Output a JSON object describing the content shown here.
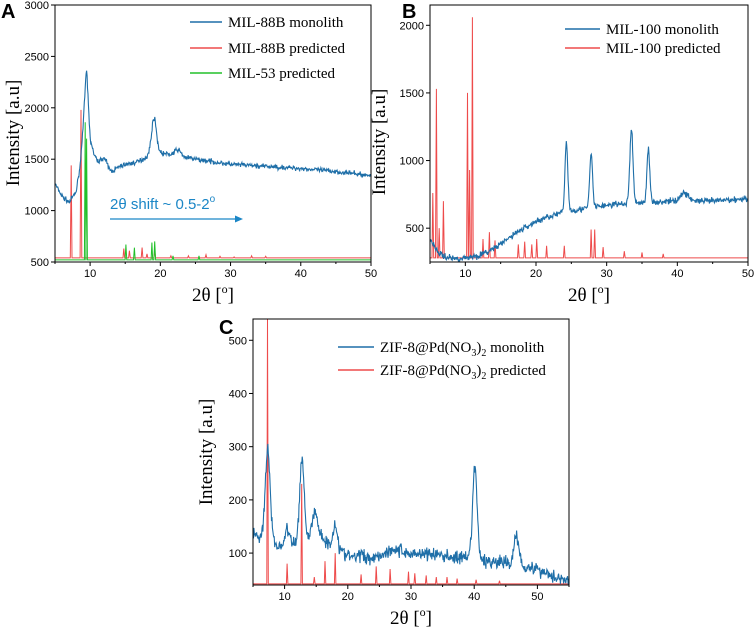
{
  "colors": {
    "blue": "#1f6fa8",
    "red": "#ee4b4b",
    "green": "#22c02a",
    "annotation": "#1b86c6",
    "axis": "#000000"
  },
  "chart_data": [
    {
      "panel": "A",
      "type": "line",
      "xlabel": "2θ [o]",
      "ylabel": "Intensity [a.u]",
      "xlim": [
        5,
        50
      ],
      "ylim": [
        500,
        3000
      ],
      "xticks": [
        "10",
        "20",
        "30",
        "40",
        "50"
      ],
      "yticks": [
        "500",
        "1000",
        "1500",
        "2000",
        "2500",
        "3000"
      ],
      "annotation": "2θ shift ~ 0.5-2o",
      "legend": "top-right",
      "series": [
        {
          "name": "MIL-88B monolith",
          "style": "noisy",
          "color": "#1f6fa8",
          "baseline": [
            [
              5,
              1260
            ],
            [
              6,
              1140
            ],
            [
              7,
              1080
            ],
            [
              8,
              1180
            ],
            [
              8.6,
              1450
            ],
            [
              9.1,
              1900
            ],
            [
              9.5,
              2250
            ],
            [
              10,
              1700
            ],
            [
              10.5,
              1560
            ],
            [
              11,
              1480
            ],
            [
              12,
              1450
            ],
            [
              13,
              1380
            ],
            [
              14,
              1420
            ],
            [
              15,
              1450
            ],
            [
              16,
              1460
            ],
            [
              17,
              1480
            ],
            [
              18,
              1520
            ],
            [
              19,
              1560
            ],
            [
              20,
              1560
            ],
            [
              22,
              1540
            ],
            [
              25,
              1500
            ],
            [
              28,
              1470
            ],
            [
              30,
              1450
            ],
            [
              35,
              1430
            ],
            [
              40,
              1410
            ],
            [
              45,
              1380
            ],
            [
              50,
              1340
            ]
          ],
          "peaks": [
            [
              9.45,
              120,
              0.25
            ],
            [
              19.1,
              340,
              0.35
            ],
            [
              22.5,
              60,
              0.4
            ],
            [
              12,
              60,
              0.4
            ]
          ],
          "noise": 18
        },
        {
          "name": "MIL-88B predicted",
          "style": "sticks",
          "color": "#ee4b4b",
          "base": 540,
          "sticks": [
            [
              7.3,
              1440
            ],
            [
              8.7,
              1980
            ],
            [
              14.8,
              630
            ],
            [
              15.6,
              610
            ],
            [
              17.4,
              640
            ],
            [
              18.1,
              580
            ],
            [
              19.2,
              610
            ],
            [
              21.5,
              560
            ],
            [
              24.0,
              560
            ],
            [
              26.5,
              570
            ],
            [
              28.5,
              555
            ],
            [
              30.5,
              550
            ],
            [
              33,
              560
            ],
            [
              35,
              555
            ]
          ]
        },
        {
          "name": "MIL-53 predicted",
          "style": "sticks",
          "color": "#22c02a",
          "base": 520,
          "sticks": [
            [
              9.3,
              1860
            ],
            [
              9.5,
              1700
            ],
            [
              15.1,
              670
            ],
            [
              16.3,
              640
            ],
            [
              18.8,
              690
            ],
            [
              19.2,
              700
            ],
            [
              21.8,
              560
            ],
            [
              25.5,
              560
            ]
          ]
        }
      ]
    },
    {
      "panel": "B",
      "type": "line",
      "xlabel": "2θ [o]",
      "ylabel": "Intensity [a.u]",
      "xlim": [
        5,
        50
      ],
      "ylim": [
        250,
        2150
      ],
      "xticks": [
        "10",
        "20",
        "30",
        "40",
        "50"
      ],
      "yticks": [
        "500",
        "1000",
        "1500",
        "2000"
      ],
      "legend": "top-right",
      "series": [
        {
          "name": "MIL-100 monolith",
          "style": "noisy",
          "color": "#1f6fa8",
          "baseline": [
            [
              5,
              420
            ],
            [
              5.5,
              380
            ],
            [
              6,
              330
            ],
            [
              7,
              290
            ],
            [
              8,
              280
            ],
            [
              9,
              275
            ],
            [
              10,
              280
            ],
            [
              11,
              290
            ],
            [
              12,
              300
            ],
            [
              13,
              320
            ],
            [
              14,
              350
            ],
            [
              15,
              380
            ],
            [
              16,
              420
            ],
            [
              17,
              460
            ],
            [
              18,
              490
            ],
            [
              19,
              520
            ],
            [
              20,
              550
            ],
            [
              22,
              590
            ],
            [
              25,
              630
            ],
            [
              30,
              670
            ],
            [
              35,
              690
            ],
            [
              40,
              700
            ],
            [
              45,
              700
            ],
            [
              50,
              720
            ]
          ],
          "peaks": [
            [
              24.3,
              520,
              0.2
            ],
            [
              27.8,
              400,
              0.2
            ],
            [
              33.5,
              550,
              0.22
            ],
            [
              35.9,
              390,
              0.2
            ],
            [
              41,
              60,
              0.6
            ]
          ],
          "noise": 18
        },
        {
          "name": "MIL-100 predicted",
          "style": "sticks",
          "color": "#ee4b4b",
          "base": 280,
          "sticks": [
            [
              5.4,
              760
            ],
            [
              5.9,
              1530
            ],
            [
              6.3,
              500
            ],
            [
              6.9,
              700
            ],
            [
              10.3,
              1500
            ],
            [
              10.6,
              930
            ],
            [
              11.0,
              2060
            ],
            [
              12.5,
              420
            ],
            [
              13.4,
              470
            ],
            [
              14.2,
              410
            ],
            [
              17.5,
              380
            ],
            [
              18.4,
              400
            ],
            [
              19.4,
              380
            ],
            [
              20.1,
              420
            ],
            [
              21.5,
              370
            ],
            [
              24,
              370
            ],
            [
              27.8,
              490
            ],
            [
              28.3,
              490
            ],
            [
              29.5,
              360
            ],
            [
              32.5,
              330
            ],
            [
              35,
              320
            ],
            [
              38,
              310
            ]
          ]
        }
      ]
    },
    {
      "panel": "C",
      "type": "line",
      "xlabel": "2θ [o]",
      "ylabel": "Intensity [a.u]",
      "xlim": [
        5,
        55
      ],
      "ylim": [
        40,
        540
      ],
      "xticks": [
        "10",
        "20",
        "30",
        "40",
        "50"
      ],
      "yticks": [
        "100",
        "200",
        "300",
        "400",
        "500"
      ],
      "legend": "top-right",
      "series": [
        {
          "name": "ZIF-8@Pd(NO3)2 monolith",
          "style": "noisy",
          "color": "#1f6fa8",
          "baseline": [
            [
              5,
              135
            ],
            [
              6,
              130
            ],
            [
              7,
              150
            ],
            [
              8,
              130
            ],
            [
              9,
              110
            ],
            [
              10,
              115
            ],
            [
              11,
              115
            ],
            [
              12,
              120
            ],
            [
              13,
              120
            ],
            [
              14,
              130
            ],
            [
              15,
              150
            ],
            [
              16,
              130
            ],
            [
              17,
              115
            ],
            [
              18,
              110
            ],
            [
              20,
              95
            ],
            [
              22,
              90
            ],
            [
              24,
              92
            ],
            [
              26,
              100
            ],
            [
              27,
              108
            ],
            [
              28,
              105
            ],
            [
              30,
              98
            ],
            [
              32,
              100
            ],
            [
              35,
              95
            ],
            [
              38,
              90
            ],
            [
              42,
              85
            ],
            [
              46,
              80
            ],
            [
              50,
              70
            ],
            [
              53,
              55
            ],
            [
              55,
              48
            ]
          ],
          "peaks": [
            [
              7.35,
              150,
              0.35
            ],
            [
              12.75,
              160,
              0.35
            ],
            [
              14.7,
              30,
              0.4
            ],
            [
              18.0,
              45,
              0.35
            ],
            [
              10.4,
              30,
              0.35
            ],
            [
              40.1,
              175,
              0.35
            ],
            [
              46.7,
              55,
              0.4
            ],
            [
              22.1,
              10,
              0.3
            ]
          ],
          "noise": 10
        },
        {
          "name": "ZIF-8@Pd(NO3)2 predicted",
          "style": "sticks",
          "color": "#ee4b4b",
          "base": 42,
          "sticks": [
            [
              7.3,
              540
            ],
            [
              10.4,
              80
            ],
            [
              12.7,
              230
            ],
            [
              14.7,
              55
            ],
            [
              16.4,
              85
            ],
            [
              18.0,
              100
            ],
            [
              22.1,
              60
            ],
            [
              24.5,
              75
            ],
            [
              26.7,
              70
            ],
            [
              29.6,
              65
            ],
            [
              30.6,
              62
            ],
            [
              32.4,
              58
            ],
            [
              34.0,
              55
            ],
            [
              35.7,
              55
            ],
            [
              37.3,
              52
            ],
            [
              40.3,
              50
            ],
            [
              44.0,
              48
            ]
          ]
        }
      ]
    }
  ],
  "panels": {
    "A": {
      "label": "A",
      "legend": [
        "MIL-88B monolith",
        "MIL-88B predicted",
        "MIL-53 predicted"
      ]
    },
    "B": {
      "label": "B",
      "legend": [
        "MIL-100 monolith",
        "MIL-100 predicted"
      ]
    },
    "C": {
      "label": "C"
    }
  },
  "text": {
    "xlabel_main": "2θ [",
    "xlabel_sup": "o",
    "xlabel_end": "]",
    "ylabel": "Intensity [a.u]",
    "shift_main": "2θ shift ~ 0.5-2",
    "shift_sup": "o",
    "zif_prefix": "ZIF-8@Pd(NO",
    "zif_sub3": "3",
    "zif_mid": ")",
    "zif_sub2": "2",
    "zif_monolith": " monolith",
    "zif_predicted": " predicted"
  }
}
